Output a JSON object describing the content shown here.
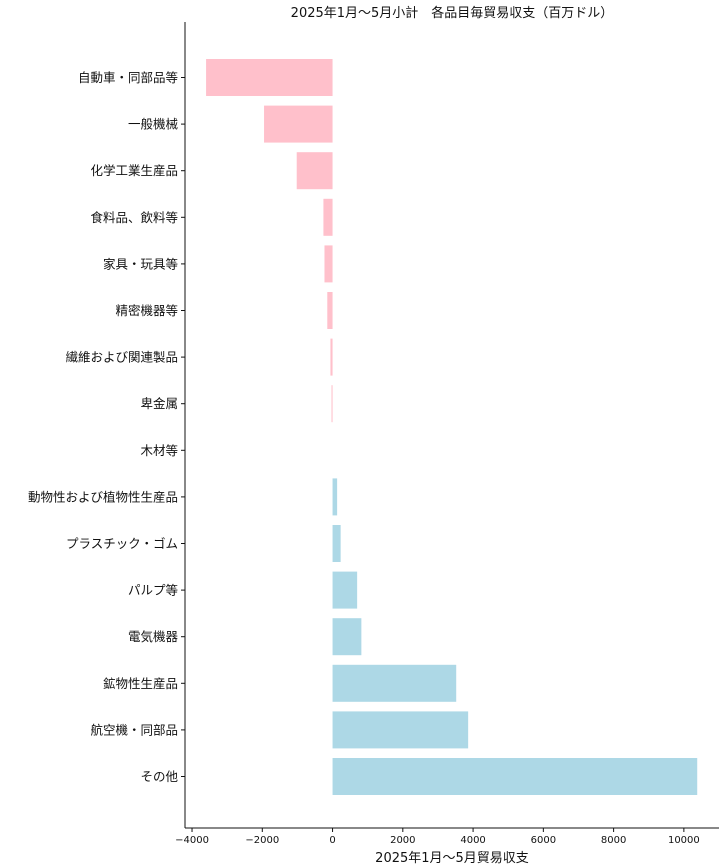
{
  "chart_data": {
    "type": "bar",
    "orientation": "horizontal",
    "title": "2025年1月～5月小計　各品目毎貿易収支（百万ドル）",
    "xlabel": "2025年1月～5月貿易収支",
    "ylabel": "",
    "xlim": [
      -4200,
      11000
    ],
    "xticks": [
      -4000,
      -2000,
      0,
      2000,
      4000,
      6000,
      8000,
      10000
    ],
    "xtick_labels": [
      "−4000",
      "−2000",
      "0",
      "2000",
      "4000",
      "6000",
      "8000",
      "10000"
    ],
    "grid": false,
    "legend": "none",
    "categories": [
      "自動車・同部品等",
      "一般機械",
      "化学工業生産品",
      "食料品、飲料等",
      "家具・玩具等",
      "精密機器等",
      "繊維および関連製品",
      "卑金属",
      "木材等",
      "動物性および植物性生産品",
      "プラスチック・ゴム",
      "パルプ等",
      "電気機器",
      "鉱物性生産品",
      "航空機・同部品",
      "その他"
    ],
    "values": [
      -3600,
      -1950,
      -1020,
      -260,
      -230,
      -150,
      -60,
      -30,
      0,
      130,
      230,
      700,
      820,
      3520,
      3860,
      10380
    ],
    "colors": {
      "negative": "#ffc0cb",
      "positive": "#add8e6"
    }
  }
}
